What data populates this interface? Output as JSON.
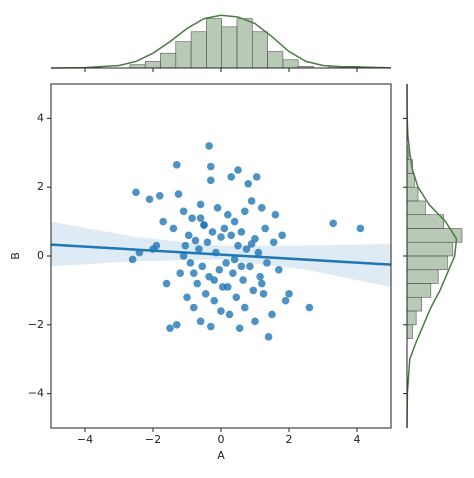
{
  "chart_data": {
    "type": "scatter",
    "xlabel": "A",
    "ylabel": "B",
    "color": "#1f77b4",
    "marginal_color": "#4e7a46",
    "xlim": [
      -5,
      5
    ],
    "ylim": [
      -5,
      5
    ],
    "xticks": [
      {
        "value": -4,
        "label": "−4"
      },
      {
        "value": -2,
        "label": "−2"
      },
      0,
      2,
      4
    ],
    "yticks": [
      {
        "value": -4,
        "label": "−4"
      },
      {
        "value": -2,
        "label": "−2"
      },
      0,
      2,
      4
    ],
    "x": [
      -2.6,
      -2.5,
      -2.4,
      -2.1,
      -2,
      -1.9,
      -1.8,
      -1.7,
      -1.6,
      -1.5,
      -1.4,
      -1.3,
      -1.3,
      -1.25,
      -1.2,
      -1.1,
      -1.05,
      -1,
      -0.95,
      -0.9,
      -0.85,
      -0.8,
      -0.75,
      -0.7,
      -0.65,
      -0.6,
      -0.6,
      -0.55,
      -0.5,
      -0.45,
      -0.4,
      -0.35,
      -0.3,
      -0.3,
      -0.25,
      -0.2,
      -0.15,
      -0.1,
      -0.05,
      0,
      0,
      -0.35,
      -0.3,
      0.05,
      0.1,
      0.15,
      0.2,
      0.25,
      0.3,
      0.3,
      0.35,
      0.4,
      0.45,
      0.5,
      0.5,
      0.55,
      0.6,
      0.65,
      0.7,
      0.7,
      0.75,
      0.8,
      0.85,
      0.9,
      0.95,
      1,
      1,
      1.05,
      1.1,
      1.15,
      1.2,
      1.25,
      1.3,
      1.35,
      1.4,
      1.5,
      1.55,
      1.6,
      1.7,
      1.8,
      1.9,
      2,
      2.6,
      3.3,
      4.1,
      -0.8,
      -0.5,
      0.2,
      0.6,
      -1.1,
      0.9,
      -0.2,
      0.4,
      1.2,
      -0.6
    ],
    "y": [
      -0.1,
      1.85,
      0.1,
      1.65,
      0.2,
      0.3,
      1.75,
      1.0,
      -0.8,
      -2.1,
      0.8,
      2.65,
      -2.0,
      1.8,
      -0.5,
      1.3,
      0.3,
      -1.2,
      0.6,
      -0.2,
      1.1,
      -1.5,
      0.45,
      -0.8,
      0.2,
      -1.9,
      1.5,
      -0.3,
      0.9,
      -1.1,
      0.4,
      -0.6,
      2.2,
      -2.05,
      0.7,
      -1.3,
      0.1,
      1.4,
      -0.4,
      0.55,
      -1.6,
      3.2,
      2.6,
      -0.9,
      0.8,
      -0.2,
      1.2,
      -1.7,
      0.6,
      2.3,
      -0.5,
      1.0,
      -1.2,
      0.3,
      2.5,
      -2.1,
      0.7,
      -0.7,
      1.3,
      -1.5,
      0.2,
      2.1,
      -0.3,
      1.6,
      -1.0,
      0.5,
      -1.9,
      2.3,
      0.1,
      -0.6,
      1.4,
      -1.1,
      0.8,
      -0.2,
      -2.35,
      -1.7,
      0.4,
      1.2,
      -0.4,
      0.6,
      -1.3,
      -1.1,
      -1.5,
      0.95,
      0.8,
      -0.5,
      0.9,
      -0.9,
      -0.3,
      0.0,
      0.35,
      -0.7,
      -0.1,
      -0.8,
      1.1
    ],
    "regression": {
      "x": [
        -5,
        5
      ],
      "y": [
        0.33,
        -0.25
      ],
      "ci_x": [
        -5,
        -2.5,
        0,
        2.5,
        5
      ],
      "ci_upper": [
        1.0,
        0.55,
        0.3,
        0.3,
        0.35
      ],
      "ci_lower": [
        -0.3,
        -0.15,
        -0.1,
        -0.4,
        -0.9
      ]
    },
    "marginal_x": {
      "bins": [
        -2.68,
        -2.23,
        -1.78,
        -1.33,
        -0.88,
        -0.43,
        0.02,
        0.47,
        0.92,
        1.37,
        1.82,
        2.27,
        2.72,
        3.17,
        3.62,
        4.07
      ],
      "counts": [
        2,
        4,
        9,
        16,
        22,
        30,
        25,
        30,
        22,
        10,
        5,
        1,
        0,
        1,
        1
      ],
      "lim": [
        0,
        34
      ],
      "kde_x": [
        -5,
        -4,
        -3,
        -2.5,
        -2,
        -1.5,
        -1,
        -0.5,
        0,
        0.5,
        1,
        1.5,
        2,
        2.5,
        3,
        3.5,
        4,
        5
      ],
      "kde_y": [
        0,
        0.2,
        1.5,
        4,
        9,
        16,
        24,
        30,
        32,
        31,
        27,
        19,
        10,
        4,
        1.5,
        0.8,
        0.7,
        0.1
      ]
    },
    "marginal_y": {
      "bins": [
        -2.4,
        -2,
        -1.6,
        -1.2,
        -0.8,
        -0.4,
        0,
        0.4,
        0.8,
        1.2,
        1.6,
        2,
        2.4,
        2.8,
        3.2
      ],
      "counts": [
        3,
        5,
        8,
        13,
        17,
        22,
        25,
        30,
        20,
        10,
        6,
        4,
        3,
        1
      ],
      "lim": [
        0,
        30
      ],
      "kde_x": [
        -5,
        -4,
        -3,
        -2.5,
        -2,
        -1.5,
        -1,
        -0.5,
        0,
        0.5,
        1,
        1.5,
        2,
        2.5,
        3,
        3.5,
        4,
        5
      ],
      "kde_y": [
        0,
        0.2,
        1.5,
        5,
        9,
        13,
        18,
        22,
        26,
        27,
        21,
        12,
        6,
        3,
        1.5,
        0.5,
        0.1,
        0
      ]
    }
  }
}
